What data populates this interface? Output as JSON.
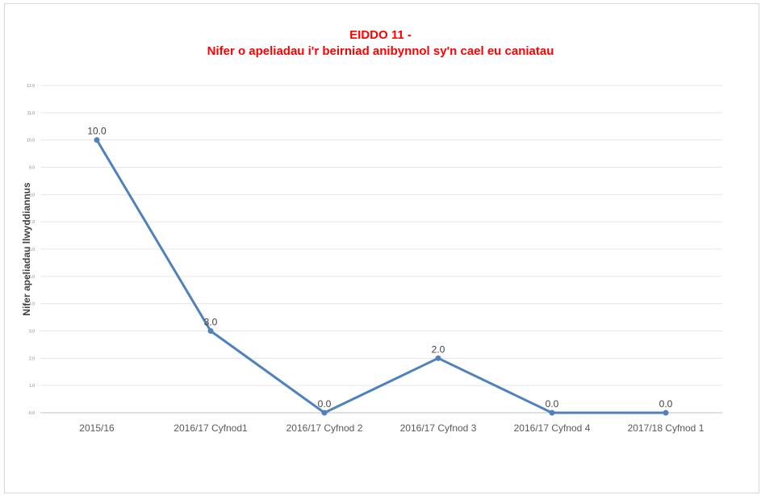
{
  "chart_data": {
    "type": "line",
    "title_lines": [
      "EIDDO 11 -",
      "Nifer o apeliadau i'r beirniad anibynnol sy'n cael eu caniatau"
    ],
    "ylabel": "Nifer apeliadau llwyddiannus",
    "xlabel": "",
    "categories": [
      "2015/16",
      "2016/17 Cyfnod1",
      "2016/17 Cyfnod 2",
      "2016/17 Cyfnod 3",
      "2016/17 Cyfnod 4",
      "2017/18 Cyfnod 1"
    ],
    "series": [
      {
        "values": [
          10.0,
          3.0,
          0.0,
          2.0,
          0.0,
          0.0
        ]
      }
    ],
    "data_labels": [
      "10.0",
      "3.0",
      "0.0",
      "2.0",
      "0.0",
      "0.0"
    ],
    "ylim": [
      0,
      12
    ],
    "yticks": [
      "0.0",
      "1.0",
      "2.0",
      "3.0",
      "4.0",
      "5.0",
      "6.0",
      "7.0",
      "8.0",
      "9.0",
      "10.0",
      "11.0",
      "12.0"
    ],
    "grid": true,
    "legend": "none",
    "colors": {
      "line": "#4f81bd",
      "title": "#ff0000",
      "grid": "#e6e6e6"
    }
  }
}
